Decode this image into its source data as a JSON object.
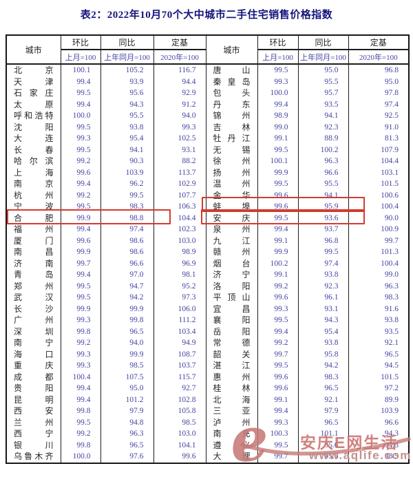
{
  "title": "表2：2022年10月70个大中城市二手住宅销售价格指数",
  "table": {
    "headers": {
      "city": "城市",
      "mom": "环比",
      "mom_base": "上月=100",
      "yoy": "同比",
      "yoy_base": "上年同月=100",
      "fixed": "定基",
      "fixed_base": "2020年=100"
    },
    "left_rows": [
      {
        "city": "北京",
        "mom": "100.1",
        "yoy": "105.2",
        "fixed": "116.7"
      },
      {
        "city": "天津",
        "mom": "99.4",
        "yoy": "93.9",
        "fixed": "94.4"
      },
      {
        "city": "石家庄",
        "mom": "99.5",
        "yoy": "95.6",
        "fixed": "92.9"
      },
      {
        "city": "太原",
        "mom": "99.4",
        "yoy": "94.3",
        "fixed": "91.2"
      },
      {
        "city": "呼和浩特",
        "mom": "100.0",
        "yoy": "95.5",
        "fixed": "94.0"
      },
      {
        "city": "沈阳",
        "mom": "99.5",
        "yoy": "93.8",
        "fixed": "99.3"
      },
      {
        "city": "大连",
        "mom": "99.3",
        "yoy": "95.4",
        "fixed": "102.5"
      },
      {
        "city": "长春",
        "mom": "99.5",
        "yoy": "94.1",
        "fixed": "93.1"
      },
      {
        "city": "哈尔滨",
        "mom": "99.2",
        "yoy": "90.3",
        "fixed": "88.2"
      },
      {
        "city": "上海",
        "mom": "99.6",
        "yoy": "103.9",
        "fixed": "113.7"
      },
      {
        "city": "南京",
        "mom": "99.4",
        "yoy": "96.2",
        "fixed": "102.9"
      },
      {
        "city": "杭州",
        "mom": "99.2",
        "yoy": "99.5",
        "fixed": "107.7"
      },
      {
        "city": "宁波",
        "mom": "99.5",
        "yoy": "98.3",
        "fixed": "106.3"
      },
      {
        "city": "合肥",
        "mom": "99.9",
        "yoy": "98.8",
        "fixed": "104.4"
      },
      {
        "city": "福州",
        "mom": "99.4",
        "yoy": "97.4",
        "fixed": "102.3"
      },
      {
        "city": "厦门",
        "mom": "99.6",
        "yoy": "98.6",
        "fixed": "103.0"
      },
      {
        "city": "南昌",
        "mom": "99.9",
        "yoy": "98.6",
        "fixed": "98.9"
      },
      {
        "city": "济南",
        "mom": "99.7",
        "yoy": "96.6",
        "fixed": "96.9"
      },
      {
        "city": "青岛",
        "mom": "99.4",
        "yoy": "97.0",
        "fixed": "98.1"
      },
      {
        "city": "郑州",
        "mom": "99.5",
        "yoy": "94.7",
        "fixed": "95.2"
      },
      {
        "city": "武汉",
        "mom": "99.5",
        "yoy": "94.2",
        "fixed": "97.3"
      },
      {
        "city": "长沙",
        "mom": "99.9",
        "yoy": "99.9",
        "fixed": "106.0"
      },
      {
        "city": "广州",
        "mom": "99.3",
        "yoy": "99.8",
        "fixed": "111.2"
      },
      {
        "city": "深圳",
        "mom": "99.8",
        "yoy": "96.5",
        "fixed": "103.4"
      },
      {
        "city": "南宁",
        "mom": "99.2",
        "yoy": "94.0",
        "fixed": "94.9"
      },
      {
        "city": "海口",
        "mom": "99.3",
        "yoy": "99.9",
        "fixed": "108.7"
      },
      {
        "city": "重庆",
        "mom": "99.3",
        "yoy": "98.5",
        "fixed": "103.7"
      },
      {
        "city": "成都",
        "mom": "100.4",
        "yoy": "107.5",
        "fixed": "115.7"
      },
      {
        "city": "贵阳",
        "mom": "99.4",
        "yoy": "95.0",
        "fixed": "92.7"
      },
      {
        "city": "昆明",
        "mom": "99.4",
        "yoy": "101.2",
        "fixed": "102.8"
      },
      {
        "city": "西安",
        "mom": "99.8",
        "yoy": "97.9",
        "fixed": "105.8"
      },
      {
        "city": "兰州",
        "mom": "99.5",
        "yoy": "94.8",
        "fixed": "98.5"
      },
      {
        "city": "西宁",
        "mom": "99.2",
        "yoy": "96.3",
        "fixed": "103.0"
      },
      {
        "city": "银川",
        "mom": "99.8",
        "yoy": "96.5",
        "fixed": "104.1"
      },
      {
        "city": "乌鲁木齐",
        "mom": "100.0",
        "yoy": "97.6",
        "fixed": "99.6"
      }
    ],
    "right_rows": [
      {
        "city": "唐山",
        "mom": "99.5",
        "yoy": "95.0",
        "fixed": "96.8"
      },
      {
        "city": "秦皇岛",
        "mom": "99.3",
        "yoy": "95.5",
        "fixed": "95.0"
      },
      {
        "city": "包头",
        "mom": "100.0",
        "yoy": "95.7",
        "fixed": "97.8"
      },
      {
        "city": "丹东",
        "mom": "99.4",
        "yoy": "93.5",
        "fixed": "97.4"
      },
      {
        "city": "锦州",
        "mom": "98.9",
        "yoy": "94.1",
        "fixed": "92.5"
      },
      {
        "city": "吉林",
        "mom": "99.0",
        "yoy": "92.3",
        "fixed": "91.0"
      },
      {
        "city": "牡丹江",
        "mom": "99.1",
        "yoy": "88.9",
        "fixed": "81.3"
      },
      {
        "city": "无锡",
        "mom": "99.5",
        "yoy": "100.2",
        "fixed": "107.9"
      },
      {
        "city": "徐州",
        "mom": "100.1",
        "yoy": "96.3",
        "fixed": "104.4"
      },
      {
        "city": "扬州",
        "mom": "99.9",
        "yoy": "96.6",
        "fixed": "103.1"
      },
      {
        "city": "温州",
        "mom": "99.5",
        "yoy": "95.5",
        "fixed": "101.5"
      },
      {
        "city": "金华",
        "mom": "99.6",
        "yoy": "94.1",
        "fixed": "100.6"
      },
      {
        "city": "蚌埠",
        "mom": "99.6",
        "yoy": "95.9",
        "fixed": "100.4"
      },
      {
        "city": "安庆",
        "mom": "99.5",
        "yoy": "93.6",
        "fixed": "90.0"
      },
      {
        "city": "泉州",
        "mom": "99.4",
        "yoy": "93.7",
        "fixed": "100.9"
      },
      {
        "city": "九江",
        "mom": "99.1",
        "yoy": "96.8",
        "fixed": "99.7"
      },
      {
        "city": "赣州",
        "mom": "99.9",
        "yoy": "99.5",
        "fixed": "101.3"
      },
      {
        "city": "烟台",
        "mom": "100.2",
        "yoy": "97.4",
        "fixed": "100.4"
      },
      {
        "city": "济宁",
        "mom": "99.1",
        "yoy": "93.8",
        "fixed": "99.0"
      },
      {
        "city": "洛阳",
        "mom": "99.2",
        "yoy": "92.3",
        "fixed": "96.3"
      },
      {
        "city": "平顶山",
        "mom": "99.6",
        "yoy": "96.1",
        "fixed": "98.3"
      },
      {
        "city": "宜昌",
        "mom": "99.3",
        "yoy": "93.1",
        "fixed": "91.6"
      },
      {
        "city": "襄阳",
        "mom": "99.5",
        "yoy": "94.3",
        "fixed": "93.8"
      },
      {
        "city": "岳阳",
        "mom": "99.4",
        "yoy": "95.4",
        "fixed": "93.5"
      },
      {
        "city": "常德",
        "mom": "99.2",
        "yoy": "93.8",
        "fixed": "92.1"
      },
      {
        "city": "韶关",
        "mom": "99.7",
        "yoy": "95.8",
        "fixed": "96.5"
      },
      {
        "city": "湛江",
        "mom": "99.5",
        "yoy": "94.2",
        "fixed": "94.5"
      },
      {
        "city": "惠州",
        "mom": "99.6",
        "yoy": "98.3",
        "fixed": "101.5"
      },
      {
        "city": "桂林",
        "mom": "99.6",
        "yoy": "96.5",
        "fixed": "97.2"
      },
      {
        "city": "北海",
        "mom": "99.1",
        "yoy": "92.1",
        "fixed": "89.9"
      },
      {
        "city": "三亚",
        "mom": "99.4",
        "yoy": "97.9",
        "fixed": "103.9"
      },
      {
        "city": "泸州",
        "mom": "99.3",
        "yoy": "96.5",
        "fixed": "96.6"
      },
      {
        "city": "南充",
        "mom": "100.3",
        "yoy": "101.1",
        "fixed": "94.3"
      },
      {
        "city": "遵义",
        "mom": "99.5",
        "yoy": "95.6",
        "fixed": "94.8"
      },
      {
        "city": "大理",
        "mom": "99.7",
        "yoy": "95.6",
        "fixed": "98.5"
      }
    ]
  },
  "annotations": {
    "highlight_color": "#d23b2e",
    "highlighted_cities": [
      "合肥",
      "蚌埠",
      "安庆"
    ]
  },
  "watermark": {
    "logo_glyph": "e",
    "text": "安庆E网生活",
    "url": "www.aqlife.com",
    "color": "#c67a76"
  }
}
